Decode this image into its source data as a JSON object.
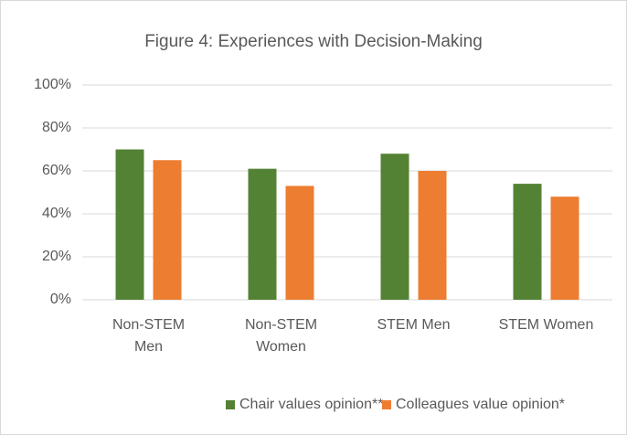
{
  "chart_data": {
    "type": "bar",
    "title": "Figure 4: Experiences with Decision-Making",
    "categories": [
      "Non-STEM Men",
      "Non-STEM Women",
      "STEM Men",
      "STEM Women"
    ],
    "series": [
      {
        "name": "Chair values opinion**",
        "color": "#548235",
        "values": [
          70,
          61,
          68,
          54
        ]
      },
      {
        "name": "Colleagues value opinion*",
        "color": "#ed7d31",
        "values": [
          65,
          53,
          60,
          48
        ]
      }
    ],
    "ylim": [
      0,
      100
    ],
    "yticks": [
      {
        "value": 0,
        "label": "0%"
      },
      {
        "value": 20,
        "label": "20%"
      },
      {
        "value": 40,
        "label": "40%"
      },
      {
        "value": 60,
        "label": "60%"
      },
      {
        "value": 80,
        "label": "80%"
      },
      {
        "value": 100,
        "label": "100%"
      }
    ],
    "grid": true,
    "legend": "bottom"
  }
}
